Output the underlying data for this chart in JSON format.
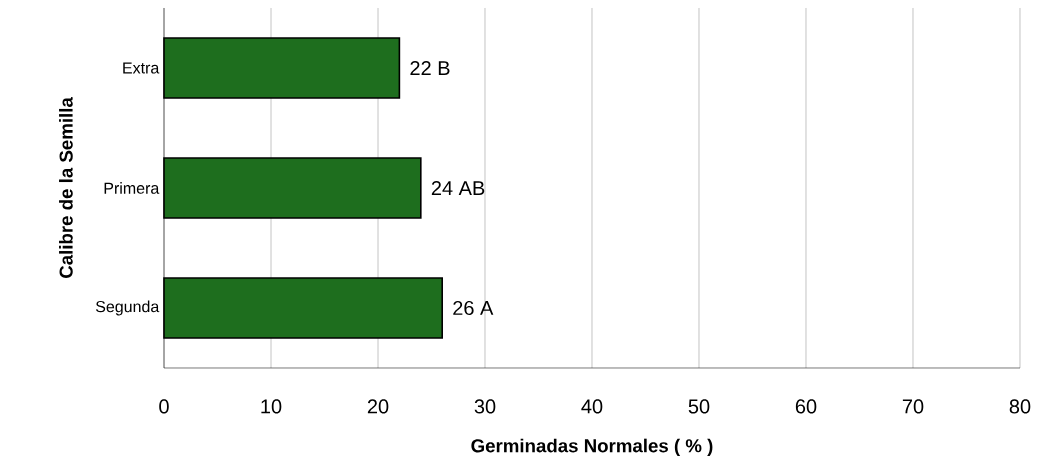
{
  "chart_data": {
    "type": "bar",
    "orientation": "horizontal",
    "xlabel": "Germinadas  Normales ( % )",
    "ylabel": "Calibre de la Semilla",
    "categories": [
      "Extra",
      "Primera",
      "Segunda"
    ],
    "values": [
      22,
      24,
      26
    ],
    "value_labels": [
      "22  B",
      "24  AB",
      "26  A"
    ],
    "color": "#1e6e1e",
    "xlim": [
      0,
      80
    ],
    "xticks": [
      0,
      10,
      20,
      30,
      40,
      50,
      60,
      70,
      80
    ],
    "grid": "x"
  }
}
